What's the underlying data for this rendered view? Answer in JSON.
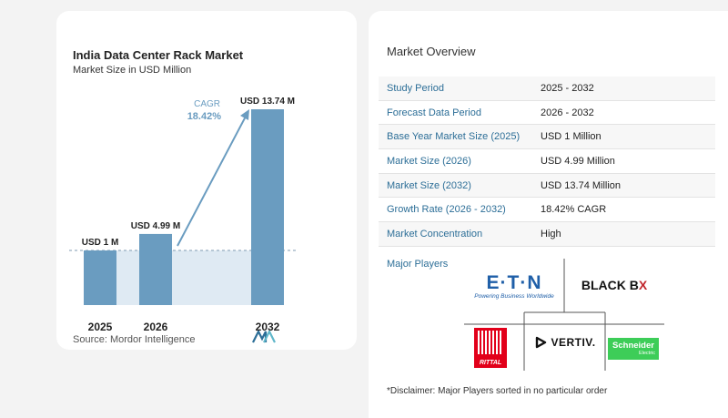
{
  "chart": {
    "title": "India Data Center Rack Market",
    "subtitle": "Market Size in USD Million",
    "source": "Source:  Mordor Intelligence",
    "cagr_label": "CAGR",
    "cagr_value": "18.42%"
  },
  "chart_data": {
    "type": "bar",
    "title": "India Data Center Rack Market",
    "subtitle": "Market Size in USD Million",
    "categories": [
      "2025",
      "2026",
      "2032"
    ],
    "values": [
      1,
      4.99,
      13.74
    ],
    "data_labels": [
      "USD 1 M",
      "USD 4.99 M",
      "USD 13.74 M"
    ],
    "annotation": "CAGR 18.42%",
    "grid": false,
    "colors": {
      "bar": "#6a9cc0",
      "bar_light": "#9dc0da",
      "shade": "#dfeaf3",
      "arrow": "#6a9cc0"
    }
  },
  "overview": {
    "title": "Market Overview",
    "rows": [
      {
        "label": "Study Period",
        "value": "2025 - 2032"
      },
      {
        "label": "Forecast Data Period",
        "value": "2026 - 2032"
      },
      {
        "label": "Base Year Market Size (2025)",
        "value": "USD 1 Million"
      },
      {
        "label": "Market Size (2026)",
        "value": "USD 4.99 Million"
      },
      {
        "label": "Market Size (2032)",
        "value": "USD 13.74 Million"
      },
      {
        "label": "Growth Rate (2026 - 2032)",
        "value": "18.42% CAGR"
      },
      {
        "label": "Market Concentration",
        "value": "High"
      }
    ]
  },
  "players": {
    "title": "Major Players",
    "eaton_name": "E·T·N",
    "eaton_tag": "Powering Business Worldwide",
    "blackbox_a": "BLACK B",
    "blackbox_b": "X",
    "rittal": "RITTAL",
    "vertiv": "VERTIV.",
    "schneider_a": "Schneider",
    "schneider_b": "Electric"
  },
  "disclaimer": "*Disclaimer: Major Players sorted in no particular order"
}
